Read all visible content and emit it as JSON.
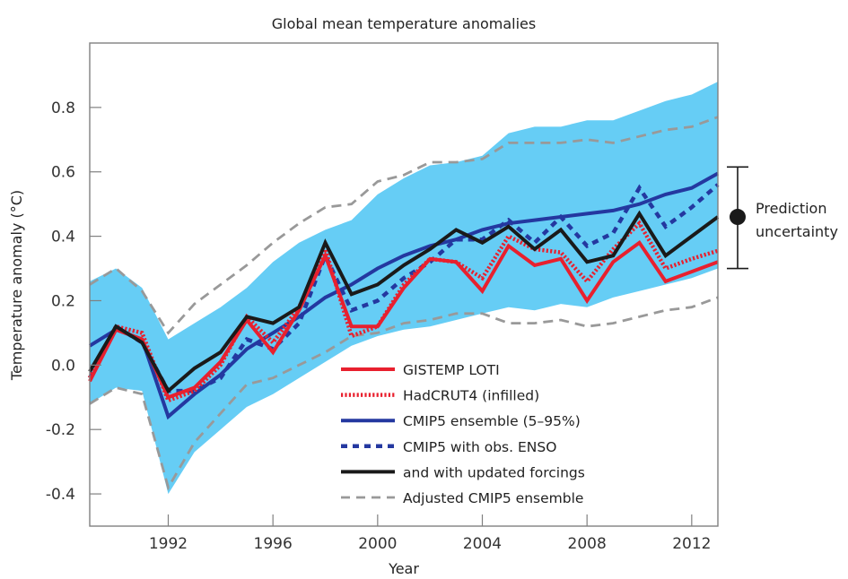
{
  "chart_data": {
    "type": "line",
    "title": "Global mean temperature anomalies",
    "xlabel": "Year",
    "ylabel": "Temperature anomaly (°C)",
    "xlim": [
      1989,
      2013
    ],
    "ylim": [
      -0.5,
      1.0
    ],
    "xticks": [
      1992,
      1996,
      2000,
      2004,
      2008,
      2012
    ],
    "xtick_labels": [
      "1992",
      "1996",
      "2000",
      "2004",
      "2008",
      "2012"
    ],
    "yticks": [
      -0.4,
      -0.2,
      0.0,
      0.2,
      0.4,
      0.6,
      0.8
    ],
    "ytick_labels": [
      "-0.4",
      "-0.2",
      "0.0",
      "0.2",
      "0.4",
      "0.6",
      "0.8"
    ],
    "grid": false,
    "legend_position": "bottom-center",
    "x": [
      1989,
      1990,
      1991,
      1992,
      1993,
      1994,
      1995,
      1996,
      1997,
      1998,
      1999,
      2000,
      2001,
      2002,
      2003,
      2004,
      2005,
      2006,
      2007,
      2008,
      2009,
      2010,
      2011,
      2012,
      2013
    ],
    "band": {
      "name": "CMIP5 ensemble (5–95%)",
      "color": "#66cdf5",
      "upper": [
        0.26,
        0.3,
        0.24,
        0.08,
        0.13,
        0.18,
        0.24,
        0.32,
        0.38,
        0.42,
        0.45,
        0.53,
        0.58,
        0.62,
        0.63,
        0.65,
        0.72,
        0.74,
        0.74,
        0.76,
        0.76,
        0.79,
        0.82,
        0.84,
        0.88
      ],
      "lower": [
        -0.12,
        -0.07,
        -0.08,
        -0.4,
        -0.27,
        -0.2,
        -0.13,
        -0.09,
        -0.04,
        0.01,
        0.06,
        0.09,
        0.11,
        0.12,
        0.14,
        0.16,
        0.18,
        0.17,
        0.19,
        0.18,
        0.21,
        0.23,
        0.25,
        0.27,
        0.3
      ]
    },
    "series": [
      {
        "name": "Adjusted CMIP5 ensemble (upper)",
        "legend": false,
        "color": "#999999",
        "style": "dashed",
        "values": [
          0.25,
          0.3,
          0.23,
          0.1,
          0.19,
          0.25,
          0.31,
          0.38,
          0.44,
          0.49,
          0.5,
          0.57,
          0.59,
          0.63,
          0.63,
          0.64,
          0.69,
          0.69,
          0.69,
          0.7,
          0.69,
          0.71,
          0.73,
          0.74,
          0.77
        ]
      },
      {
        "name": "Adjusted CMIP5 ensemble (lower)",
        "legend": false,
        "color": "#999999",
        "style": "dashed",
        "values": [
          -0.12,
          -0.07,
          -0.09,
          -0.38,
          -0.24,
          -0.15,
          -0.06,
          -0.04,
          0.0,
          0.04,
          0.09,
          0.1,
          0.13,
          0.14,
          0.16,
          0.16,
          0.13,
          0.13,
          0.14,
          0.12,
          0.13,
          0.15,
          0.17,
          0.18,
          0.21
        ]
      },
      {
        "name": "CMIP5 ensemble (5–95%)",
        "color": "#2438a0",
        "style": "solid",
        "values": [
          0.06,
          0.11,
          0.08,
          -0.16,
          -0.09,
          -0.03,
          0.05,
          0.1,
          0.15,
          0.21,
          0.25,
          0.3,
          0.34,
          0.37,
          0.39,
          0.42,
          0.44,
          0.45,
          0.46,
          0.47,
          0.48,
          0.5,
          0.53,
          0.55,
          0.595
        ]
      },
      {
        "name": "CMIP5 with obs. ENSO",
        "color": "#2438a0",
        "style": "dashed-blue",
        "values": [
          -0.04,
          0.12,
          0.07,
          -0.08,
          -0.08,
          -0.04,
          0.08,
          0.05,
          0.13,
          0.34,
          0.17,
          0.2,
          0.27,
          0.32,
          0.39,
          0.39,
          0.45,
          0.38,
          0.46,
          0.37,
          0.41,
          0.55,
          0.43,
          0.49,
          0.56
        ]
      },
      {
        "name": "HadCRUT4 (infilled)",
        "color": "#e8202e",
        "style": "dotted",
        "values": [
          -0.04,
          0.12,
          0.1,
          -0.11,
          -0.08,
          0.0,
          0.15,
          0.07,
          0.18,
          0.36,
          0.09,
          0.12,
          0.25,
          0.33,
          0.32,
          0.27,
          0.4,
          0.36,
          0.35,
          0.26,
          0.36,
          0.44,
          0.3,
          0.33,
          0.355
        ]
      },
      {
        "name": "GISTEMP LOTI",
        "color": "#e8202e",
        "style": "solid",
        "values": [
          -0.05,
          0.11,
          0.08,
          -0.1,
          -0.07,
          0.01,
          0.14,
          0.04,
          0.17,
          0.34,
          0.12,
          0.12,
          0.24,
          0.33,
          0.32,
          0.23,
          0.37,
          0.31,
          0.33,
          0.2,
          0.32,
          0.38,
          0.26,
          0.29,
          0.32
        ]
      },
      {
        "name": "and with updated forcings",
        "color": "#1a1a1a",
        "style": "solid",
        "values": [
          -0.02,
          0.12,
          0.07,
          -0.08,
          -0.01,
          0.04,
          0.15,
          0.13,
          0.18,
          0.38,
          0.22,
          0.25,
          0.31,
          0.36,
          0.42,
          0.38,
          0.43,
          0.36,
          0.42,
          0.32,
          0.34,
          0.47,
          0.34,
          0.4,
          0.46
        ]
      }
    ],
    "legend": [
      {
        "label": "GISTEMP LOTI",
        "color": "#e8202e",
        "style": "solid"
      },
      {
        "label": "HadCRUT4 (infilled)",
        "color": "#e8202e",
        "style": "dotted"
      },
      {
        "label": "CMIP5 ensemble (5–95%)",
        "color": "#2438a0",
        "style": "solid"
      },
      {
        "label": "CMIP5 with obs. ENSO",
        "color": "#2438a0",
        "style": "dashed-blue"
      },
      {
        "label": "and with updated forcings",
        "color": "#1a1a1a",
        "style": "solid"
      },
      {
        "label": "Adjusted CMIP5 ensemble",
        "color": "#999999",
        "style": "dashed"
      }
    ],
    "annotation": {
      "label_line1": "Prediction",
      "label_line2": "uncertainty",
      "center": 0.46,
      "low": 0.3,
      "high": 0.615
    }
  }
}
